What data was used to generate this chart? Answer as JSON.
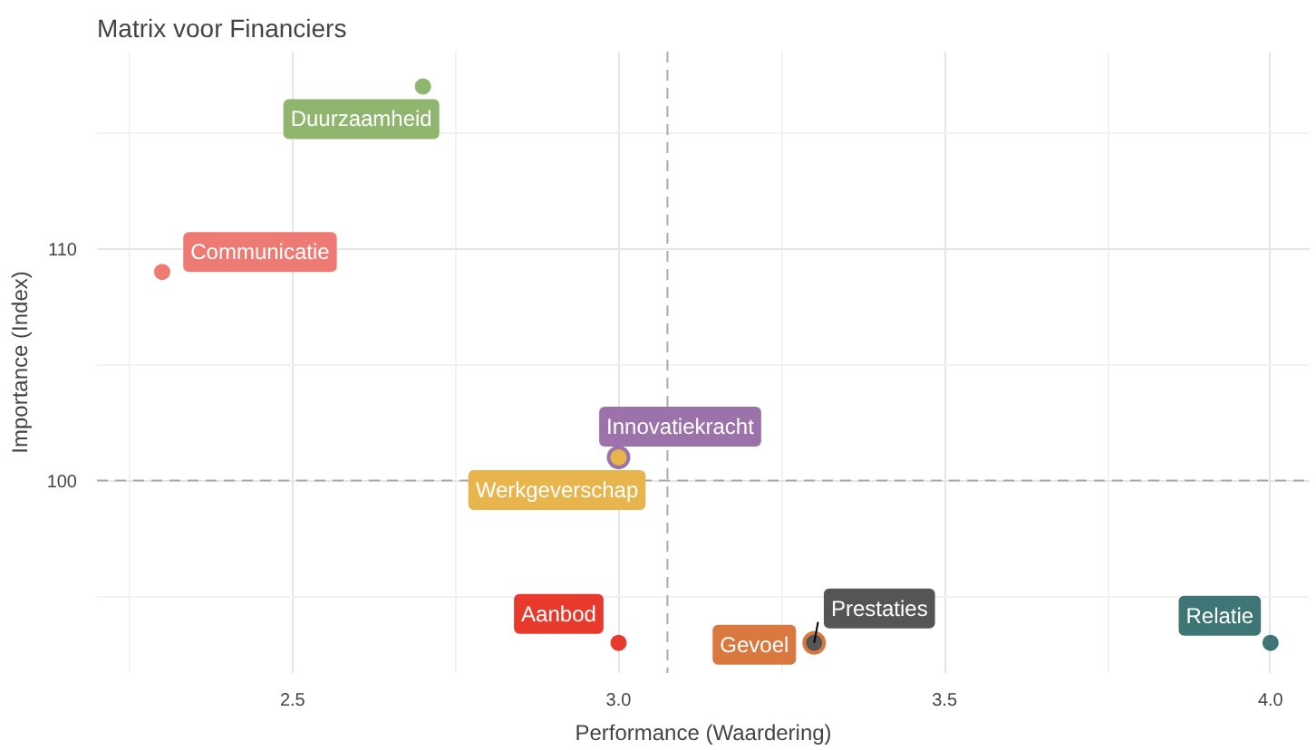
{
  "chart_data": {
    "type": "scatter",
    "title": "Matrix voor Financiers",
    "xlabel": "Performance (Waardering)",
    "ylabel": "Importance (Index)",
    "xlim": [
      2.2,
      4.06
    ],
    "ylim": [
      91.7,
      118.5
    ],
    "xticks": [
      2.5,
      {
        "value": 3,
        "label": "3.0"
      },
      3.5,
      {
        "value": 4,
        "label": "4.0"
      }
    ],
    "yticks": [
      100,
      110
    ],
    "grid": true,
    "marker": "circle",
    "series": [
      {
        "name": "Duurzaamheid",
        "color": "#8fb56e",
        "x": [
          2.7
        ],
        "values": [
          117
        ]
      },
      {
        "name": "Communicatie",
        "color": "#ee7b73",
        "x": [
          2.3
        ],
        "values": [
          109
        ]
      },
      {
        "name": "Innovatiekracht",
        "color": "#9b72aa",
        "x": [
          3.0
        ],
        "values": [
          101
        ]
      },
      {
        "name": "Werkgeverschap",
        "color": "#e8b44c",
        "x": [
          3.0
        ],
        "values": [
          101
        ]
      },
      {
        "name": "Aanbod",
        "color": "#e83a2c",
        "x": [
          3.0
        ],
        "values": [
          93
        ]
      },
      {
        "name": "Gevoel",
        "color": "#d9783f",
        "x": [
          3.3
        ],
        "values": [
          93
        ]
      },
      {
        "name": "Prestaties",
        "color": "#555555",
        "x": [
          3.3
        ],
        "values": [
          93
        ]
      },
      {
        "name": "Relatie",
        "color": "#3e7575",
        "x": [
          4.0
        ],
        "values": [
          93
        ]
      }
    ],
    "ref_lines": [
      {
        "axis": "x",
        "value": 3.075,
        "line_style": "dashed",
        "color": "#aaaaaa"
      },
      {
        "axis": "y",
        "value": 100,
        "line_style": "dashed",
        "color": "#aaaaaa"
      }
    ]
  }
}
